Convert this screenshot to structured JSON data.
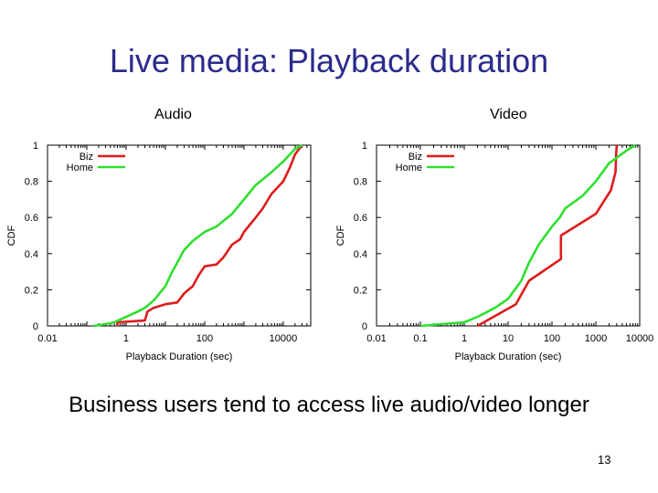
{
  "slide": {
    "title": "Live media: Playback duration",
    "summary": "Business users tend to access live audio/video longer",
    "page_number": "13"
  },
  "colors": {
    "title": "#2b2b8c",
    "biz": "#dd1c1c",
    "home": "#2ee02e"
  },
  "chart_data": [
    {
      "type": "line",
      "caption": "Audio",
      "xlabel": "Playback Duration (sec)",
      "ylabel": "CDF",
      "x_scale": "log",
      "xlim": [
        0.01,
        50000
      ],
      "ylim": [
        0,
        1
      ],
      "x_ticks": [
        0.01,
        1,
        100,
        10000
      ],
      "x_tick_labels": [
        "0.01",
        "1",
        "100",
        "10000"
      ],
      "y_ticks": [
        0,
        0.2,
        0.4,
        0.6,
        0.8,
        1
      ],
      "y_tick_labels": [
        "0",
        "0.2",
        "0.4",
        "0.6",
        "0.8",
        "1"
      ],
      "grid": false,
      "legend": "top-left",
      "series": [
        {
          "name": "Biz",
          "x": [
            0.6,
            0.6,
            3,
            3.5,
            5,
            10,
            20,
            30,
            50,
            70,
            100,
            200,
            300,
            500,
            800,
            1000,
            2000,
            3000,
            5000,
            10000,
            15000,
            20000,
            30000
          ],
          "y": [
            0,
            0.02,
            0.03,
            0.08,
            0.1,
            0.12,
            0.13,
            0.18,
            0.22,
            0.28,
            0.33,
            0.34,
            0.38,
            0.45,
            0.48,
            0.52,
            0.6,
            0.65,
            0.73,
            0.8,
            0.88,
            0.95,
            1.0
          ]
        },
        {
          "name": "Home",
          "x": [
            0.15,
            0.3,
            0.5,
            1,
            2,
            3,
            5,
            10,
            15,
            20,
            30,
            50,
            100,
            200,
            500,
            1000,
            2000,
            5000,
            10000,
            20000,
            30000
          ],
          "y": [
            0,
            0.01,
            0.02,
            0.05,
            0.08,
            0.1,
            0.14,
            0.22,
            0.3,
            0.35,
            0.42,
            0.47,
            0.52,
            0.55,
            0.62,
            0.7,
            0.78,
            0.85,
            0.91,
            0.98,
            1.0
          ]
        }
      ]
    },
    {
      "type": "line",
      "caption": "Video",
      "xlabel": "Playback Duration (sec)",
      "ylabel": "CDF",
      "x_scale": "log",
      "xlim": [
        0.01,
        10000
      ],
      "ylim": [
        0,
        1
      ],
      "x_ticks": [
        0.01,
        0.1,
        1,
        10,
        100,
        1000,
        10000
      ],
      "x_tick_labels": [
        "0.01",
        "0.1",
        "1",
        "10",
        "100",
        "1000",
        "10000"
      ],
      "y_ticks": [
        0,
        0.2,
        0.4,
        0.6,
        0.8,
        1
      ],
      "y_tick_labels": [
        "0",
        "0.2",
        "0.4",
        "0.6",
        "0.8",
        "1"
      ],
      "grid": false,
      "legend": "top-left",
      "series": [
        {
          "name": "Biz",
          "x": [
            2,
            15,
            30,
            160,
            160,
            1000,
            2200,
            2800,
            2900,
            3000
          ],
          "y": [
            0,
            0.12,
            0.25,
            0.37,
            0.5,
            0.62,
            0.75,
            0.85,
            0.95,
            1.0
          ]
        },
        {
          "name": "Home",
          "x": [
            0.1,
            0.3,
            1,
            2,
            5,
            10,
            20,
            30,
            50,
            100,
            150,
            200,
            500,
            1000,
            2000,
            5000,
            8000
          ],
          "y": [
            0,
            0.01,
            0.02,
            0.05,
            0.1,
            0.15,
            0.25,
            0.35,
            0.45,
            0.55,
            0.6,
            0.65,
            0.72,
            0.8,
            0.9,
            0.97,
            1.0
          ]
        }
      ]
    }
  ]
}
